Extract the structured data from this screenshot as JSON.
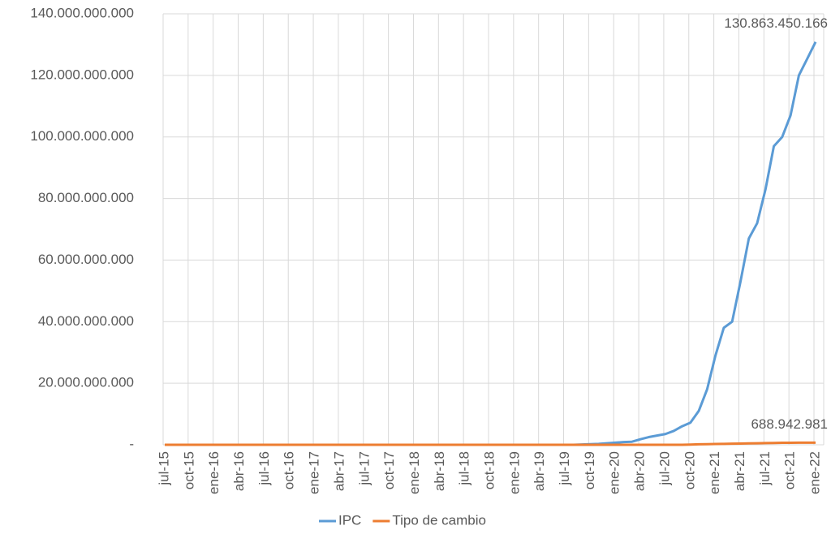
{
  "chart_data": {
    "type": "line",
    "categories": [
      "jul-15",
      null,
      null,
      "oct-15",
      null,
      null,
      "ene-16",
      null,
      null,
      "abr-16",
      null,
      null,
      "jul-16",
      null,
      null,
      "oct-16",
      null,
      null,
      "ene-17",
      null,
      null,
      "abr-17",
      null,
      null,
      "jul-17",
      null,
      null,
      "oct-17",
      null,
      null,
      "ene-18",
      null,
      null,
      "abr-18",
      null,
      null,
      "jul-18",
      null,
      null,
      "oct-18",
      null,
      null,
      "ene-19",
      null,
      null,
      "abr-19",
      null,
      null,
      "jul-19",
      null,
      null,
      "oct-19",
      null,
      null,
      "ene-20",
      null,
      null,
      "abr-20",
      null,
      null,
      "jul-20",
      null,
      null,
      "oct-20",
      null,
      null,
      "ene-21",
      null,
      null,
      "abr-21",
      null,
      null,
      "jul-21",
      null,
      null,
      "oct-21",
      null,
      null,
      "ene-22"
    ],
    "series": [
      {
        "name": "IPC",
        "color": "#5b9bd5",
        "values": [
          0,
          0,
          0,
          0,
          0,
          0,
          0,
          0,
          0,
          0,
          0,
          0,
          0,
          0,
          0,
          0,
          0,
          0,
          0,
          0,
          0,
          0,
          0,
          0,
          0,
          0,
          0,
          0,
          0,
          0,
          0,
          0,
          0,
          0,
          0,
          0,
          0,
          0,
          0,
          0,
          0,
          0,
          0,
          0,
          0,
          0,
          0,
          0,
          0,
          0,
          100000000,
          200000000,
          300000000,
          500000000,
          700000000,
          900000000,
          1000000000,
          1800000000,
          2500000000,
          3000000000,
          3500000000,
          4500000000,
          6000000000,
          7200000000,
          11000000000,
          18000000000,
          29000000000,
          38000000000,
          40000000000,
          53000000000,
          67000000000,
          72000000000,
          83000000000,
          97000000000,
          100000000000,
          107000000000,
          120000000000,
          125400000000,
          130863450166
        ],
        "value_labels": [
          null,
          null,
          null,
          null,
          null,
          null,
          null,
          null,
          null,
          null,
          null,
          null,
          null,
          null,
          null,
          null,
          null,
          null,
          null,
          null,
          null,
          null,
          null,
          null,
          null,
          null,
          null,
          null,
          null,
          null,
          null,
          null,
          null,
          null,
          null,
          null,
          null,
          null,
          null,
          null,
          null,
          null,
          null,
          null,
          null,
          null,
          null,
          null,
          null,
          null,
          null,
          null,
          null,
          null,
          null,
          null,
          null,
          null,
          null,
          null,
          null,
          null,
          null,
          null,
          null,
          null,
          null,
          null,
          null,
          null,
          null,
          null,
          null,
          null,
          null,
          null,
          null,
          null,
          "130.863.450.166"
        ]
      },
      {
        "name": "Tipo de cambio",
        "color": "#ed7d31",
        "values": [
          0,
          0,
          0,
          0,
          0,
          0,
          0,
          0,
          0,
          0,
          0,
          0,
          0,
          0,
          0,
          0,
          0,
          0,
          0,
          0,
          0,
          0,
          0,
          0,
          0,
          0,
          0,
          0,
          0,
          0,
          0,
          0,
          0,
          0,
          0,
          0,
          0,
          0,
          0,
          0,
          0,
          0,
          0,
          0,
          0,
          0,
          0,
          0,
          0,
          0,
          0,
          0,
          0,
          0,
          0,
          0,
          0,
          0,
          0,
          0,
          0,
          0,
          0,
          50000000,
          150000000,
          200000000,
          250000000,
          300000000,
          350000000,
          400000000,
          450000000,
          500000000,
          550000000,
          600000000,
          650000000,
          670000000,
          680000000,
          685000000,
          688942981
        ],
        "value_labels": [
          null,
          null,
          null,
          null,
          null,
          null,
          null,
          null,
          null,
          null,
          null,
          null,
          null,
          null,
          null,
          null,
          null,
          null,
          null,
          null,
          null,
          null,
          null,
          null,
          null,
          null,
          null,
          null,
          null,
          null,
          null,
          null,
          null,
          null,
          null,
          null,
          null,
          null,
          null,
          null,
          null,
          null,
          null,
          null,
          null,
          null,
          null,
          null,
          null,
          null,
          null,
          null,
          null,
          null,
          null,
          null,
          null,
          null,
          null,
          null,
          null,
          null,
          null,
          null,
          null,
          null,
          null,
          null,
          null,
          null,
          null,
          null,
          null,
          null,
          null,
          null,
          null,
          null,
          "688.942.981"
        ]
      }
    ],
    "ylim": [
      0,
      140000000000
    ],
    "yticks": [
      {
        "value": 0,
        "label": "-"
      },
      {
        "value": 20000000000,
        "label": "20.000.000.000"
      },
      {
        "value": 40000000000,
        "label": "40.000.000.000"
      },
      {
        "value": 60000000000,
        "label": "60.000.000.000"
      },
      {
        "value": 80000000000,
        "label": "80.000.000.000"
      },
      {
        "value": 100000000000,
        "label": "100.000.000.000"
      },
      {
        "value": 120000000000,
        "label": "120.000.000.000"
      },
      {
        "value": 140000000000,
        "label": "140.000.000.000"
      }
    ],
    "grid": true,
    "legend": "bottom"
  }
}
